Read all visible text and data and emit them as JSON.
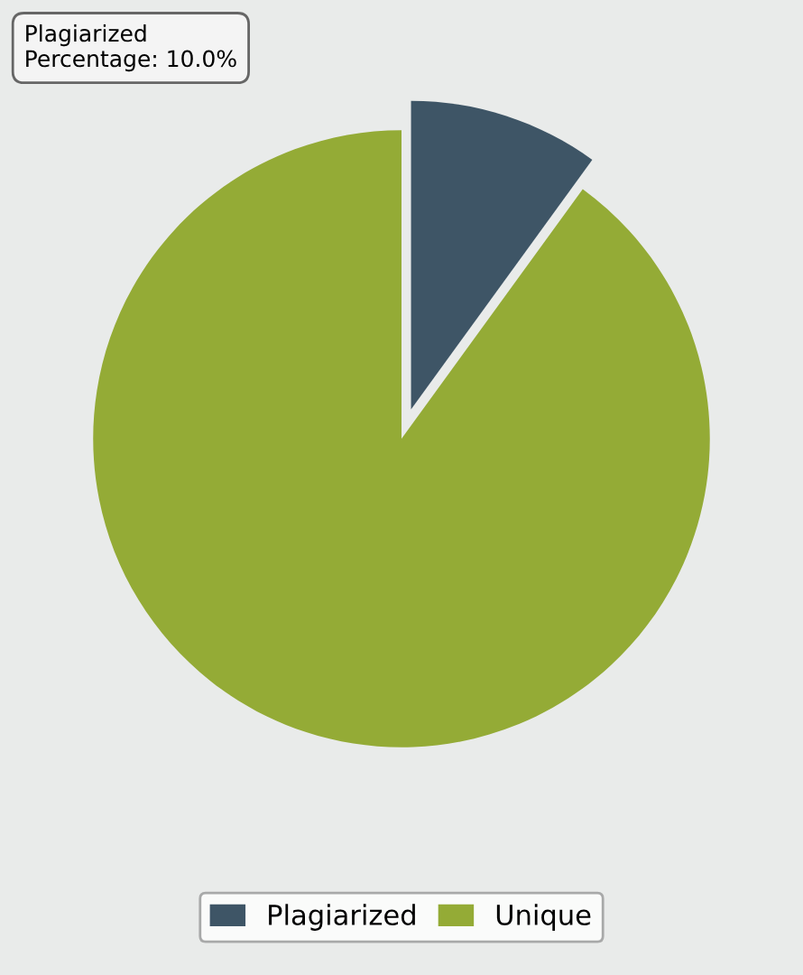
{
  "chart_data": {
    "type": "pie",
    "categories": [
      "Plagiarized",
      "Unique"
    ],
    "values": [
      10,
      90
    ],
    "colors": [
      "#3e5566",
      "#94ab36"
    ],
    "annotations": [
      "Plagiarized\nPercentage: 10.0%"
    ],
    "legend": "bottom"
  }
}
